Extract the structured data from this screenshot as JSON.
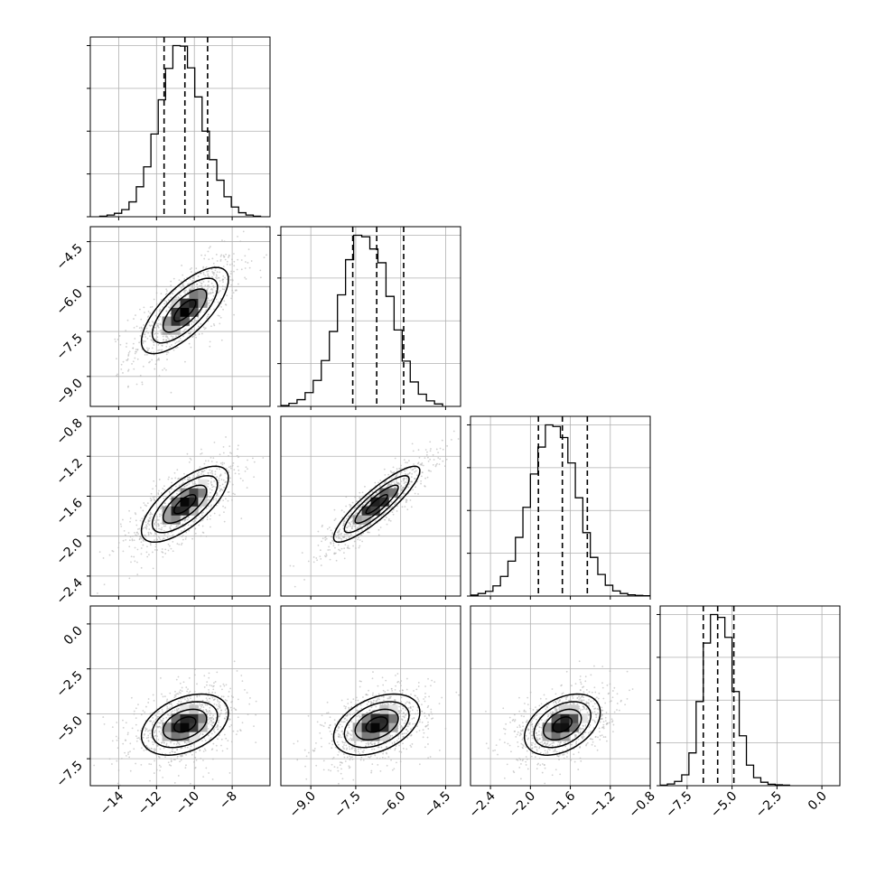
{
  "chart_data": {
    "type": "corner",
    "title": "",
    "parameters": [
      {
        "label": "",
        "range": [
          -15.5,
          -6.0
        ],
        "ticks": [
          -14,
          -12,
          -10,
          -8
        ],
        "tick_labels": [
          "−14",
          "−12",
          "−10",
          "−8"
        ],
        "quantiles": [
          -11.6,
          -10.5,
          -9.3
        ],
        "histogram": {
          "edges_range": [
            -15.0,
            -6.5
          ],
          "counts": [
            2,
            6,
            12,
            25,
            52,
            105,
            175,
            290,
            410,
            520,
            600,
            598,
            522,
            420,
            300,
            200,
            128,
            70,
            34,
            14,
            6,
            2
          ]
        }
      },
      {
        "label": "",
        "range": [
          -10.0,
          -4.0
        ],
        "ticks": [
          -9.0,
          -7.5,
          -6.0,
          -4.5
        ],
        "tick_labels": [
          "−9.0",
          "−7.5",
          "−6.0",
          "−4.5"
        ],
        "quantiles": [
          -7.6,
          -6.8,
          -5.9
        ],
        "histogram": {
          "edges_range": [
            -10.0,
            -4.6
          ],
          "counts": [
            3,
            10,
            22,
            45,
            85,
            150,
            245,
            365,
            480,
            560,
            555,
            515,
            470,
            360,
            250,
            148,
            80,
            40,
            18,
            8
          ]
        }
      },
      {
        "label": "",
        "range": [
          -2.6,
          -0.8
        ],
        "ticks": [
          -2.4,
          -2.0,
          -1.6,
          -1.2,
          -0.8
        ],
        "tick_labels": [
          "−2.4",
          "−2.0",
          "−1.6",
          "−1.2",
          "−0.8"
        ],
        "quantiles": [
          -1.92,
          -1.68,
          -1.43
        ],
        "histogram": {
          "edges_range": [
            -2.6,
            -0.8
          ],
          "counts": [
            3,
            8,
            15,
            32,
            62,
            110,
            185,
            280,
            385,
            470,
            540,
            535,
            500,
            420,
            310,
            200,
            122,
            68,
            34,
            16,
            8,
            4,
            2,
            1
          ]
        }
      },
      {
        "label": "",
        "range": [
          -9.0,
          1.0
        ],
        "ticks": [
          -7.5,
          -5.0,
          -2.5,
          0.0
        ],
        "tick_labels": [
          "−7.5",
          "−5.0",
          "−2.5",
          "0.0"
        ],
        "quantiles": [
          -6.6,
          -5.8,
          -4.9
        ],
        "histogram": {
          "edges_range": [
            -9.0,
            -1.8
          ],
          "counts": [
            2,
            6,
            15,
            38,
            115,
            295,
            500,
            600,
            590,
            520,
            330,
            175,
            72,
            28,
            12,
            5,
            3,
            2
          ]
        }
      }
    ],
    "pairs": [
      {
        "x": 0,
        "y": 1,
        "mean": [
          -10.5,
          -6.8
        ],
        "sd": [
          1.15,
          0.72
        ],
        "rho": 0.72
      },
      {
        "x": 0,
        "y": 2,
        "mean": [
          -10.5,
          -1.68
        ],
        "sd": [
          1.15,
          0.19
        ],
        "rho": 0.7
      },
      {
        "x": 1,
        "y": 2,
        "mean": [
          -6.8,
          -1.68
        ],
        "sd": [
          0.72,
          0.19
        ],
        "rho": 0.88
      },
      {
        "x": 0,
        "y": 3,
        "mean": [
          -10.5,
          -5.6
        ],
        "sd": [
          1.15,
          0.85
        ],
        "rho": 0.38
      },
      {
        "x": 1,
        "y": 3,
        "mean": [
          -6.8,
          -5.6
        ],
        "sd": [
          0.72,
          0.85
        ],
        "rho": 0.4
      },
      {
        "x": 2,
        "y": 3,
        "mean": [
          -1.68,
          -5.6
        ],
        "sd": [
          0.19,
          0.85
        ],
        "rho": 0.4
      }
    ],
    "contour_levels_sigma": [
      0.5,
      1.0,
      1.5,
      2.0
    ],
    "grid": true,
    "line_color": "#000000",
    "point_color": "#b3b3b3",
    "grid_color": "#b0b0b0"
  }
}
